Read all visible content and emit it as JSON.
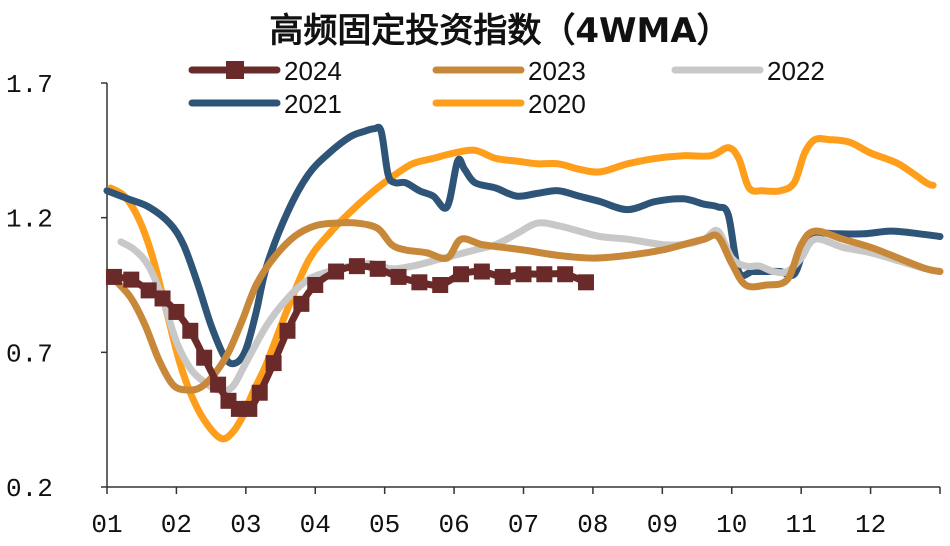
{
  "chart_data": {
    "type": "line",
    "title": "高频固定投资指数（4WMA）",
    "xlabel": "",
    "ylabel": "",
    "x_ticks": [
      "01",
      "02",
      "03",
      "04",
      "05",
      "06",
      "07",
      "08",
      "09",
      "10",
      "11",
      "12"
    ],
    "y_ticks": [
      "1.7",
      "1.2",
      "0.7",
      "0.2"
    ],
    "ylim": [
      0.2,
      1.7
    ],
    "xlim": [
      1,
      13
    ],
    "grid": false,
    "legend_position": "top",
    "series": [
      {
        "name": "2024",
        "color": "#6B2A2A",
        "marker": "square",
        "x": [
          1.1,
          1.35,
          1.6,
          1.8,
          2.0,
          2.2,
          2.4,
          2.6,
          2.75,
          2.9,
          3.05,
          3.2,
          3.4,
          3.6,
          3.8,
          4.0,
          4.3,
          4.6,
          4.9,
          5.2,
          5.5,
          5.8,
          6.1,
          6.4,
          6.7,
          7.0,
          7.3,
          7.6,
          7.9
        ],
        "y": [
          0.98,
          0.97,
          0.93,
          0.9,
          0.85,
          0.78,
          0.68,
          0.58,
          0.52,
          0.49,
          0.49,
          0.55,
          0.66,
          0.78,
          0.88,
          0.95,
          1.0,
          1.02,
          1.01,
          0.98,
          0.96,
          0.95,
          0.99,
          1.0,
          0.98,
          0.99,
          0.99,
          0.99,
          0.96
        ]
      },
      {
        "name": "2023",
        "color": "#C8883A",
        "x": [
          1.15,
          1.35,
          1.55,
          1.75,
          1.95,
          2.15,
          2.35,
          2.55,
          2.75,
          2.95,
          3.15,
          3.4,
          3.7,
          4.0,
          4.3,
          4.6,
          4.9,
          5.1,
          5.3,
          5.6,
          5.9,
          6.1,
          6.4,
          6.7,
          7.0,
          7.5,
          8.0,
          8.5,
          9.0,
          9.3,
          9.6,
          9.8,
          10.0,
          10.2,
          10.5,
          10.8,
          11.0,
          11.2,
          11.6,
          12.0,
          12.4,
          12.8,
          13.0
        ],
        "y": [
          0.96,
          0.9,
          0.8,
          0.67,
          0.58,
          0.56,
          0.57,
          0.62,
          0.7,
          0.82,
          0.95,
          1.05,
          1.13,
          1.17,
          1.18,
          1.18,
          1.16,
          1.1,
          1.08,
          1.07,
          1.05,
          1.12,
          1.1,
          1.09,
          1.08,
          1.06,
          1.05,
          1.06,
          1.08,
          1.1,
          1.12,
          1.13,
          1.03,
          0.95,
          0.95,
          0.97,
          1.1,
          1.15,
          1.12,
          1.09,
          1.05,
          1.01,
          1.0
        ]
      },
      {
        "name": "2022",
        "color": "#C8C8C8",
        "x": [
          1.2,
          1.4,
          1.6,
          1.8,
          2.0,
          2.2,
          2.4,
          2.6,
          2.8,
          3.0,
          3.3,
          3.6,
          3.9,
          4.2,
          4.5,
          4.8,
          5.1,
          5.4,
          5.7,
          6.0,
          6.3,
          6.6,
          6.9,
          7.2,
          7.5,
          7.8,
          8.1,
          8.5,
          9.0,
          9.3,
          9.6,
          9.8,
          10.0,
          10.2,
          10.4,
          10.6,
          10.8,
          11.0,
          11.2,
          11.6,
          12.0,
          12.4,
          12.8,
          13.0
        ],
        "y": [
          1.11,
          1.08,
          1.02,
          0.9,
          0.74,
          0.64,
          0.59,
          0.56,
          0.57,
          0.66,
          0.8,
          0.9,
          0.97,
          1.0,
          1.02,
          1.03,
          1.01,
          1.02,
          1.04,
          1.06,
          1.08,
          1.1,
          1.14,
          1.18,
          1.17,
          1.15,
          1.13,
          1.12,
          1.1,
          1.1,
          1.12,
          1.15,
          1.05,
          1.02,
          1.02,
          1.0,
          1.0,
          1.05,
          1.12,
          1.09,
          1.07,
          1.04,
          1.01,
          1.0
        ]
      },
      {
        "name": "2021",
        "color": "#2E5577",
        "x": [
          1.0,
          1.3,
          1.6,
          1.9,
          2.1,
          2.3,
          2.5,
          2.7,
          2.85,
          3.0,
          3.15,
          3.3,
          3.6,
          3.9,
          4.2,
          4.5,
          4.7,
          4.85,
          4.95,
          5.05,
          5.15,
          5.3,
          5.5,
          5.7,
          5.9,
          6.05,
          6.15,
          6.3,
          6.6,
          6.9,
          7.2,
          7.5,
          7.8,
          8.1,
          8.5,
          8.9,
          9.3,
          9.6,
          9.8,
          9.95,
          10.1,
          10.3,
          10.5,
          10.7,
          10.9,
          11.05,
          11.2,
          11.5,
          11.9,
          12.3,
          12.7,
          13.0
        ],
        "y": [
          1.3,
          1.27,
          1.24,
          1.18,
          1.1,
          0.96,
          0.8,
          0.68,
          0.66,
          0.71,
          0.85,
          1.02,
          1.22,
          1.36,
          1.44,
          1.5,
          1.52,
          1.53,
          1.52,
          1.36,
          1.33,
          1.33,
          1.3,
          1.28,
          1.24,
          1.41,
          1.38,
          1.33,
          1.31,
          1.28,
          1.29,
          1.3,
          1.28,
          1.26,
          1.23,
          1.26,
          1.27,
          1.25,
          1.24,
          1.21,
          1.0,
          1.0,
          1.0,
          1.0,
          0.99,
          1.09,
          1.14,
          1.14,
          1.14,
          1.15,
          1.14,
          1.13
        ]
      },
      {
        "name": "2020",
        "color": "#FF9E1B",
        "x": [
          1.05,
          1.25,
          1.45,
          1.65,
          1.85,
          2.05,
          2.25,
          2.45,
          2.65,
          2.8,
          2.95,
          3.1,
          3.3,
          3.6,
          3.9,
          4.2,
          4.5,
          4.8,
          5.1,
          5.4,
          5.7,
          6.0,
          6.3,
          6.6,
          6.9,
          7.2,
          7.5,
          7.8,
          8.1,
          8.5,
          8.9,
          9.3,
          9.7,
          9.95,
          10.1,
          10.25,
          10.45,
          10.7,
          10.9,
          11.05,
          11.2,
          11.4,
          11.7,
          12.0,
          12.4,
          12.8,
          12.9
        ],
        "y": [
          1.31,
          1.28,
          1.2,
          1.06,
          0.86,
          0.66,
          0.52,
          0.43,
          0.38,
          0.4,
          0.46,
          0.55,
          0.66,
          0.86,
          1.04,
          1.14,
          1.22,
          1.29,
          1.35,
          1.4,
          1.42,
          1.44,
          1.45,
          1.42,
          1.41,
          1.4,
          1.4,
          1.38,
          1.37,
          1.4,
          1.42,
          1.43,
          1.43,
          1.46,
          1.42,
          1.31,
          1.3,
          1.3,
          1.33,
          1.44,
          1.49,
          1.49,
          1.48,
          1.44,
          1.4,
          1.33,
          1.32
        ]
      }
    ]
  }
}
